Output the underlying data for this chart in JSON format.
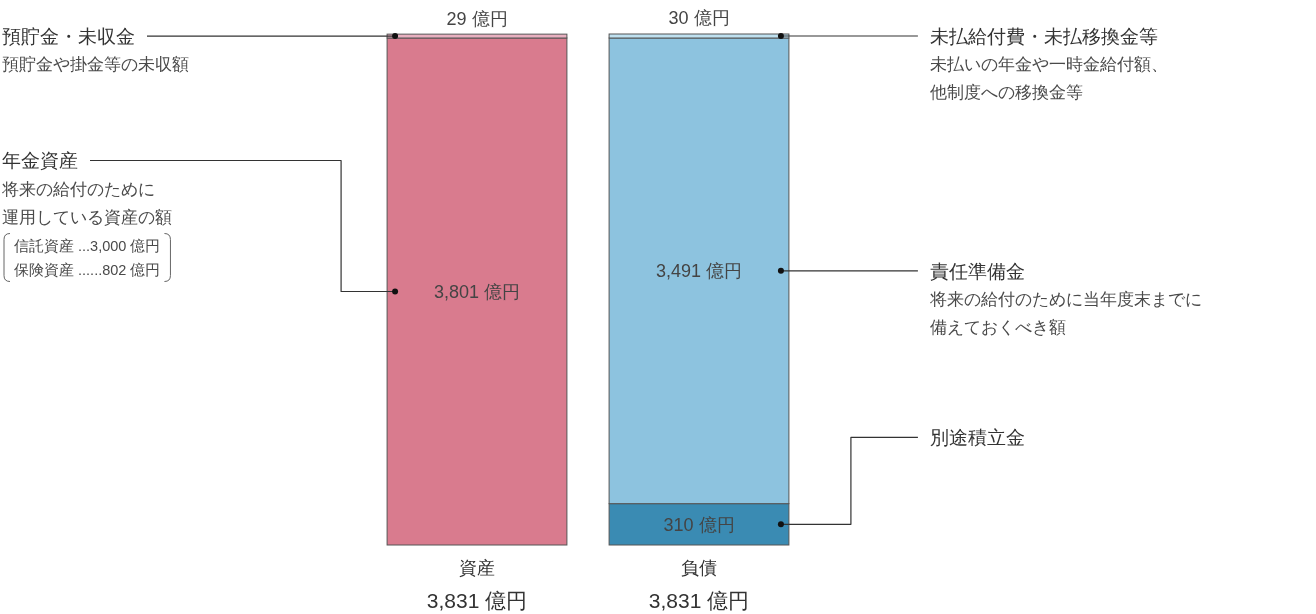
{
  "chart_data": {
    "type": "bar",
    "stacked": true,
    "categories": [
      "資産",
      "負債"
    ],
    "series": [
      {
        "name": "年金資産",
        "color": "#d97b8e",
        "values": [
          3801,
          null
        ],
        "value_labels": [
          "3,801 億円",
          null
        ]
      },
      {
        "name": "預貯金・未収金",
        "color": "#e8afbf",
        "values": [
          29,
          null
        ],
        "value_labels": [
          "29 億円",
          null
        ]
      },
      {
        "name": "別途積立金",
        "color": "#3a8bb3",
        "values": [
          null,
          310
        ],
        "value_labels": [
          null,
          "310 億円"
        ]
      },
      {
        "name": "責任準備金",
        "color": "#8dc3df",
        "values": [
          null,
          3491
        ],
        "value_labels": [
          null,
          "3,491 億円"
        ]
      },
      {
        "name": "未払給付費・未払移換金等",
        "color": "#bfe1f0",
        "values": [
          null,
          30
        ],
        "value_labels": [
          null,
          "30 億円"
        ]
      }
    ],
    "totals": [
      "3,831 億円",
      "3,831 億円"
    ],
    "annotations": [
      "預貯金や掛金等の未収額",
      "将来の給付のために",
      "運用している資産の額",
      "信託資産 ...3,000 億円",
      "保険資産 ......802 億円",
      "未払いの年金や一時金給付額、",
      "他制度への移換金等",
      "将来の給付のために当年度末までに",
      "備えておくべき額"
    ]
  }
}
